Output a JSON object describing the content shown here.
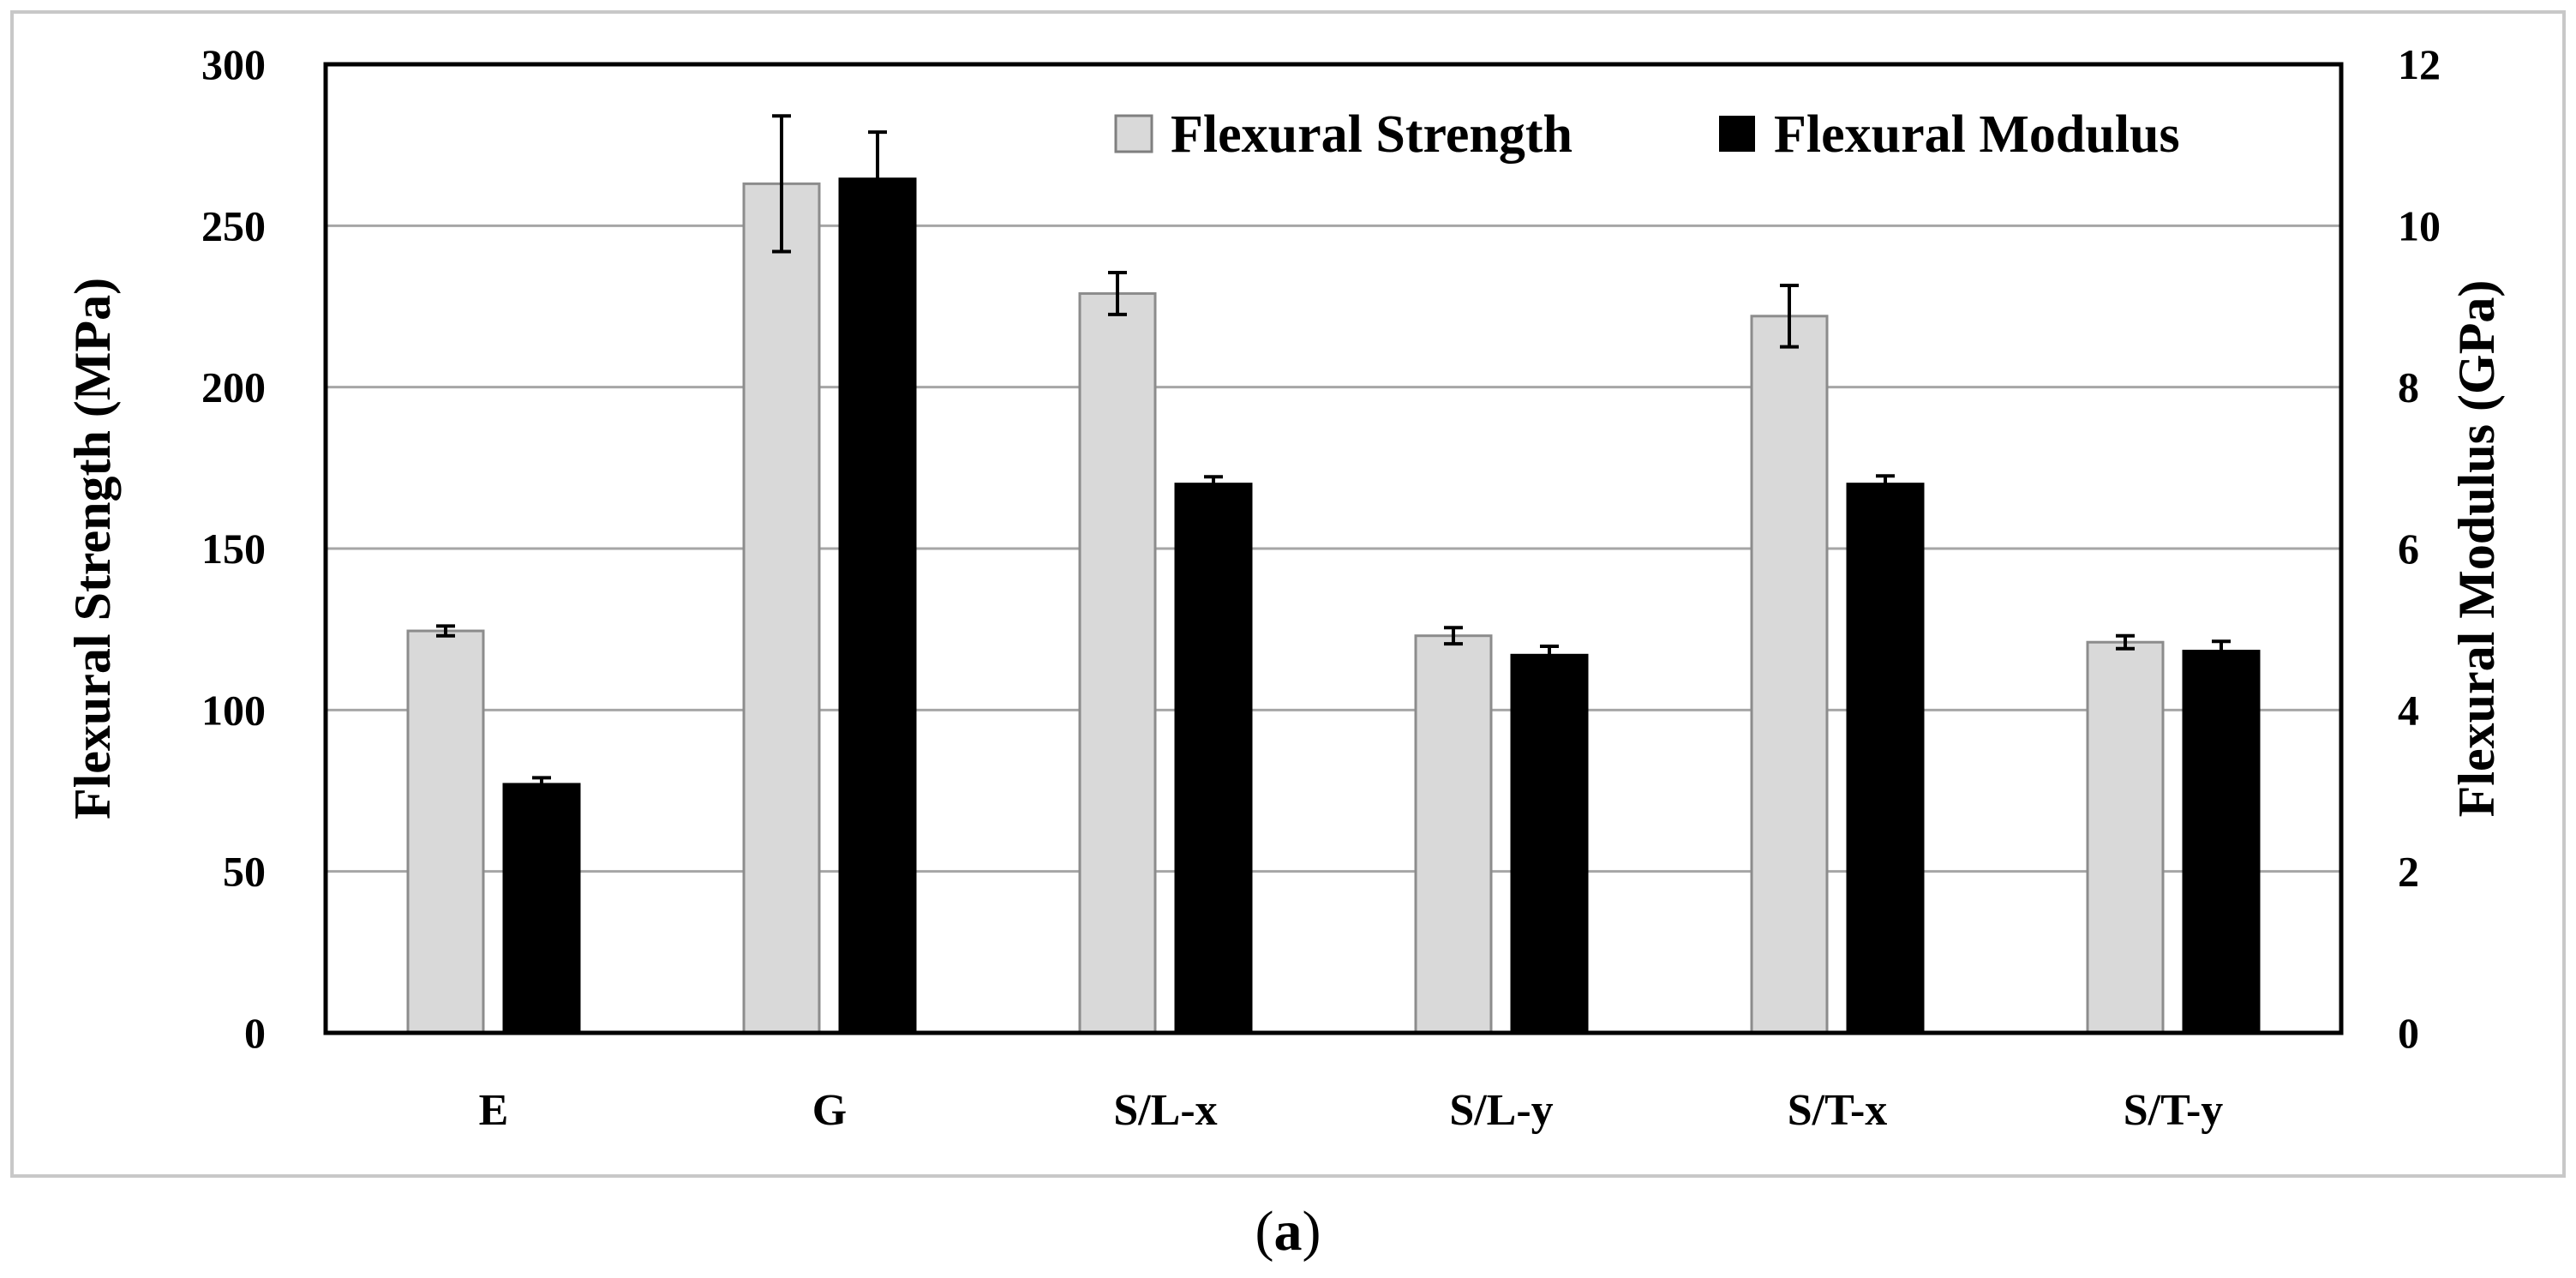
{
  "chart_data": {
    "type": "bar",
    "categories": [
      "E",
      "G",
      "S/L-x",
      "S/L-y",
      "S/T-x",
      "S/T-y"
    ],
    "series": [
      {
        "name": "Flexural Strength",
        "axis": "left",
        "color": "#d9d9d9",
        "values": [
          124.5,
          263,
          229,
          123,
          222,
          121
        ],
        "errors": [
          1.5,
          21,
          6.5,
          2.5,
          9.5,
          2
        ]
      },
      {
        "name": "Flexural Modulus",
        "axis": "right",
        "color": "#000000",
        "values": [
          3.08,
          10.58,
          6.8,
          4.68,
          6.8,
          4.73
        ],
        "errors": [
          0.08,
          0.58,
          0.09,
          0.11,
          0.1,
          0.12
        ]
      }
    ],
    "ylabel": "Flexural Strength (MPa)",
    "ylabel_right": "Flexural Modulus (GPa)",
    "ylim": [
      0,
      300
    ],
    "ylim_right": [
      0,
      12
    ],
    "yticks": [
      "0",
      "50",
      "100",
      "150",
      "200",
      "250",
      "300"
    ],
    "yticks_right": [
      "0",
      "2",
      "4",
      "6",
      "8",
      "10",
      "12"
    ],
    "grid": true,
    "legend_position": "top-right"
  },
  "caption": {
    "open": "(",
    "letter": "a",
    "close": ")"
  }
}
